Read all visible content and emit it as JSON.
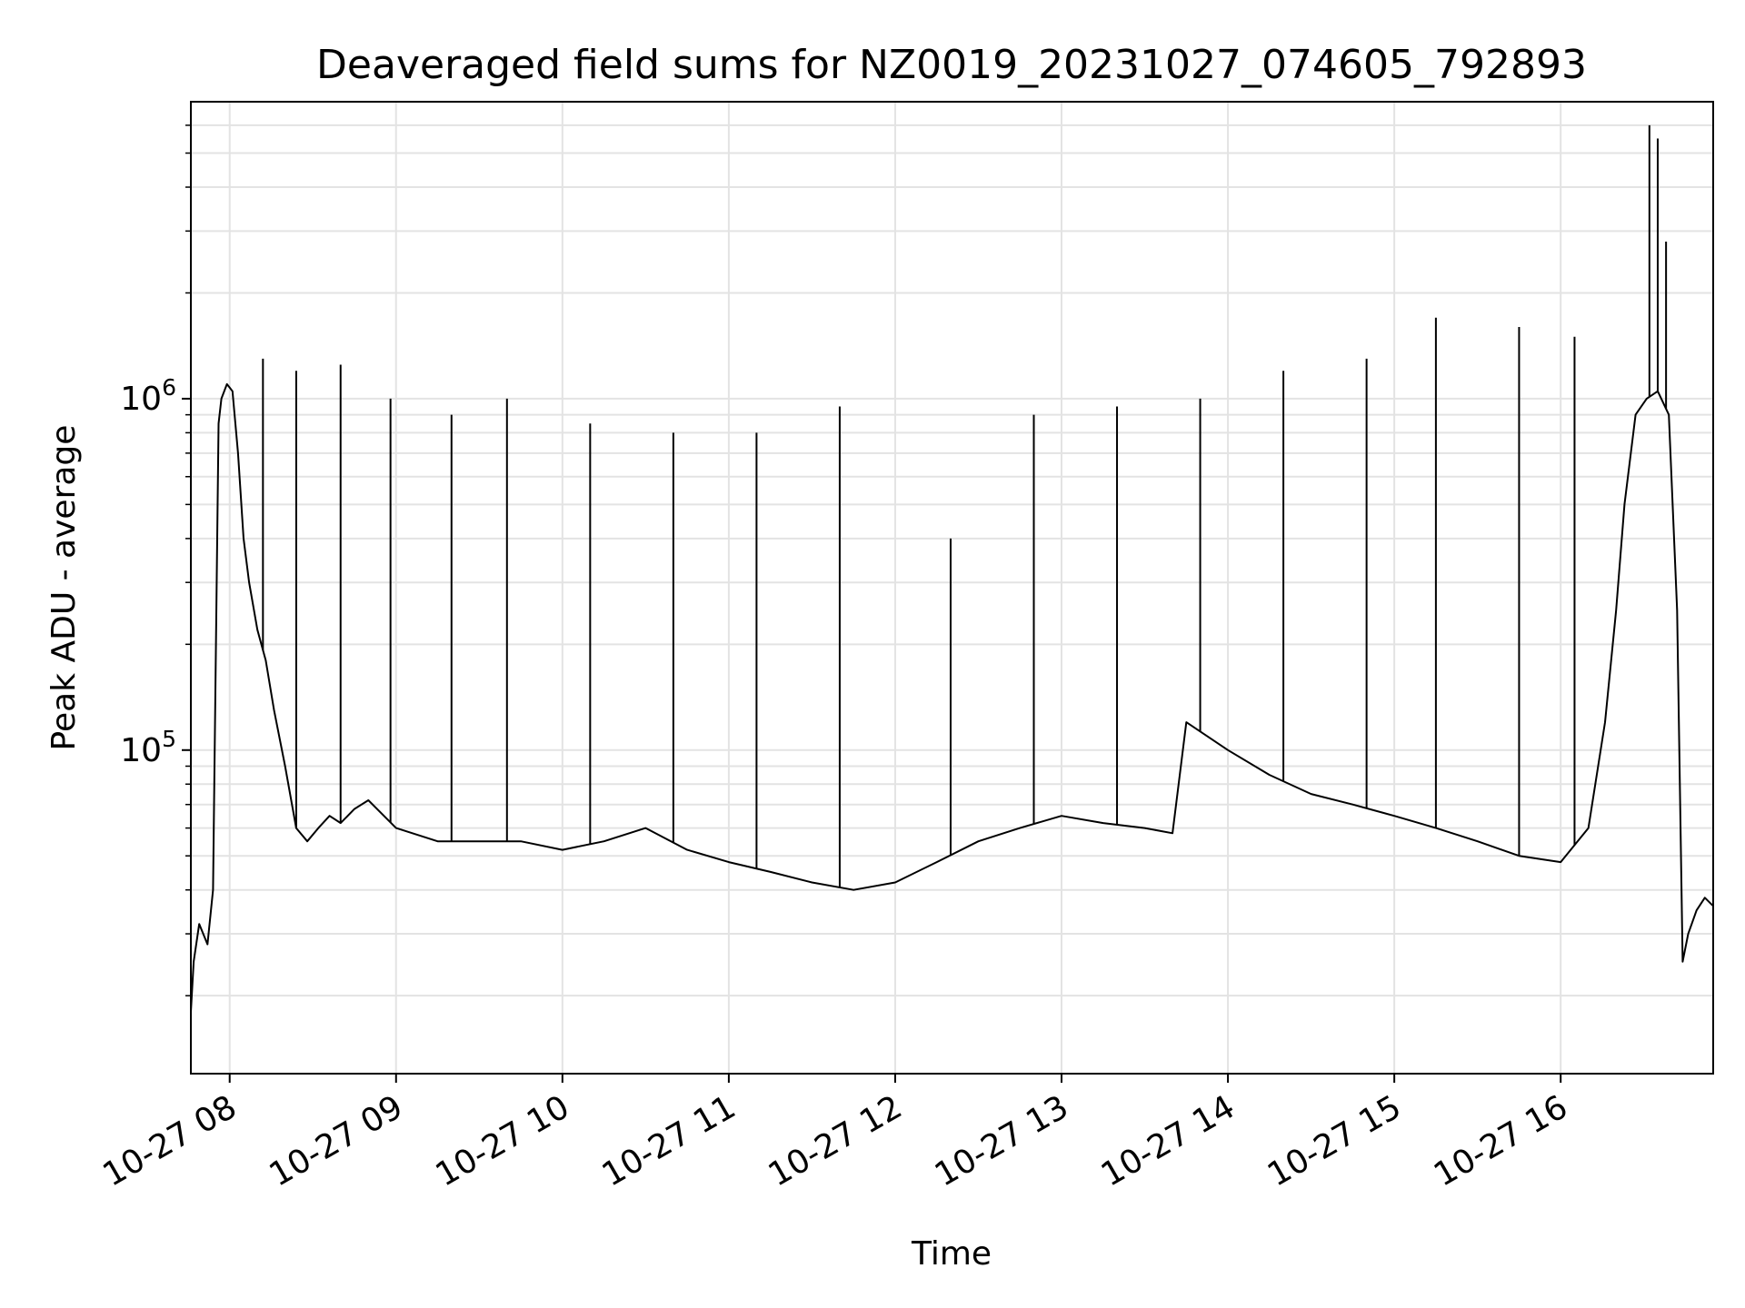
{
  "chart_data": {
    "type": "line",
    "title": "Deaveraged field sums for NZ0019_20231027_074605_792893",
    "xlabel": "Time",
    "ylabel": "Peak ADU - average",
    "yscale": "log",
    "grid": true,
    "line_color": "#000000",
    "grid_color": "#e3e3e3",
    "xlim": [
      "2023-10-27 07:46",
      "2023-10-27 16:55"
    ],
    "ylim": [
      12000,
      7000000
    ],
    "x_ticks": [
      {
        "value": "2023-10-27 08:00",
        "label": "10-27 08"
      },
      {
        "value": "2023-10-27 09:00",
        "label": "10-27 09"
      },
      {
        "value": "2023-10-27 10:00",
        "label": "10-27 10"
      },
      {
        "value": "2023-10-27 11:00",
        "label": "10-27 11"
      },
      {
        "value": "2023-10-27 12:00",
        "label": "10-27 12"
      },
      {
        "value": "2023-10-27 13:00",
        "label": "10-27 13"
      },
      {
        "value": "2023-10-27 14:00",
        "label": "10-27 14"
      },
      {
        "value": "2023-10-27 15:00",
        "label": "10-27 15"
      },
      {
        "value": "2023-10-27 16:00",
        "label": "10-27 16"
      }
    ],
    "y_ticks": [
      {
        "value": 100000,
        "base": "10",
        "exp": "5"
      },
      {
        "value": 1000000,
        "base": "10",
        "exp": "6"
      }
    ],
    "series": [
      {
        "x": [
          "2023-10-27 07:46",
          "2023-10-27 07:47",
          "2023-10-27 07:49",
          "2023-10-27 07:52",
          "2023-10-27 07:54",
          "2023-10-27 07:56",
          "2023-10-27 07:57",
          "2023-10-27 07:59",
          "2023-10-27 08:01",
          "2023-10-27 08:03",
          "2023-10-27 08:05",
          "2023-10-27 08:07",
          "2023-10-27 08:10",
          "2023-10-27 08:13",
          "2023-10-27 08:16",
          "2023-10-27 08:20",
          "2023-10-27 08:24",
          "2023-10-27 08:28",
          "2023-10-27 08:32",
          "2023-10-27 08:36",
          "2023-10-27 08:40",
          "2023-10-27 08:45",
          "2023-10-27 08:50",
          "2023-10-27 09:00",
          "2023-10-27 09:15",
          "2023-10-27 09:30",
          "2023-10-27 09:45",
          "2023-10-27 10:00",
          "2023-10-27 10:15",
          "2023-10-27 10:30",
          "2023-10-27 10:45",
          "2023-10-27 11:00",
          "2023-10-27 11:15",
          "2023-10-27 11:30",
          "2023-10-27 11:45",
          "2023-10-27 12:00",
          "2023-10-27 12:15",
          "2023-10-27 12:30",
          "2023-10-27 12:45",
          "2023-10-27 13:00",
          "2023-10-27 13:15",
          "2023-10-27 13:30",
          "2023-10-27 13:40",
          "2023-10-27 13:45",
          "2023-10-27 14:00",
          "2023-10-27 14:15",
          "2023-10-27 14:30",
          "2023-10-27 14:45",
          "2023-10-27 15:00",
          "2023-10-27 15:15",
          "2023-10-27 15:30",
          "2023-10-27 15:45",
          "2023-10-27 16:00",
          "2023-10-27 16:10",
          "2023-10-27 16:16",
          "2023-10-27 16:20",
          "2023-10-27 16:23",
          "2023-10-27 16:27",
          "2023-10-27 16:31",
          "2023-10-27 16:35",
          "2023-10-27 16:39",
          "2023-10-27 16:42",
          "2023-10-27 16:44",
          "2023-10-27 16:46",
          "2023-10-27 16:49",
          "2023-10-27 16:52",
          "2023-10-27 16:55"
        ],
        "y": [
          18000,
          25000,
          32000,
          28000,
          40000,
          850000,
          1000000,
          1100000,
          1050000,
          700000,
          400000,
          300000,
          220000,
          180000,
          130000,
          90000,
          60000,
          55000,
          60000,
          65000,
          62000,
          68000,
          72000,
          60000,
          55000,
          55000,
          55000,
          52000,
          55000,
          60000,
          52000,
          48000,
          45000,
          42000,
          40000,
          42000,
          48000,
          55000,
          60000,
          65000,
          62000,
          60000,
          58000,
          120000,
          100000,
          85000,
          75000,
          70000,
          65000,
          60000,
          55000,
          50000,
          48000,
          60000,
          120000,
          250000,
          500000,
          900000,
          1000000,
          1050000,
          900000,
          250000,
          25000,
          30000,
          35000,
          38000,
          36000
        ],
        "spikes": [
          {
            "x": "2023-10-27 08:12",
            "y": 1300000
          },
          {
            "x": "2023-10-27 08:24",
            "y": 1200000
          },
          {
            "x": "2023-10-27 08:40",
            "y": 1250000
          },
          {
            "x": "2023-10-27 08:58",
            "y": 1000000
          },
          {
            "x": "2023-10-27 09:20",
            "y": 900000
          },
          {
            "x": "2023-10-27 09:40",
            "y": 1000000
          },
          {
            "x": "2023-10-27 10:10",
            "y": 850000
          },
          {
            "x": "2023-10-27 10:40",
            "y": 800000
          },
          {
            "x": "2023-10-27 11:10",
            "y": 800000
          },
          {
            "x": "2023-10-27 11:40",
            "y": 950000
          },
          {
            "x": "2023-10-27 12:20",
            "y": 400000
          },
          {
            "x": "2023-10-27 12:50",
            "y": 900000
          },
          {
            "x": "2023-10-27 13:20",
            "y": 950000
          },
          {
            "x": "2023-10-27 13:50",
            "y": 1000000
          },
          {
            "x": "2023-10-27 14:20",
            "y": 1200000
          },
          {
            "x": "2023-10-27 14:50",
            "y": 1300000
          },
          {
            "x": "2023-10-27 15:15",
            "y": 1700000
          },
          {
            "x": "2023-10-27 15:45",
            "y": 1600000
          },
          {
            "x": "2023-10-27 16:05",
            "y": 1500000
          },
          {
            "x": "2023-10-27 16:32",
            "y": 6000000
          },
          {
            "x": "2023-10-27 16:35",
            "y": 5500000
          },
          {
            "x": "2023-10-27 16:38",
            "y": 2800000
          }
        ]
      }
    ]
  }
}
